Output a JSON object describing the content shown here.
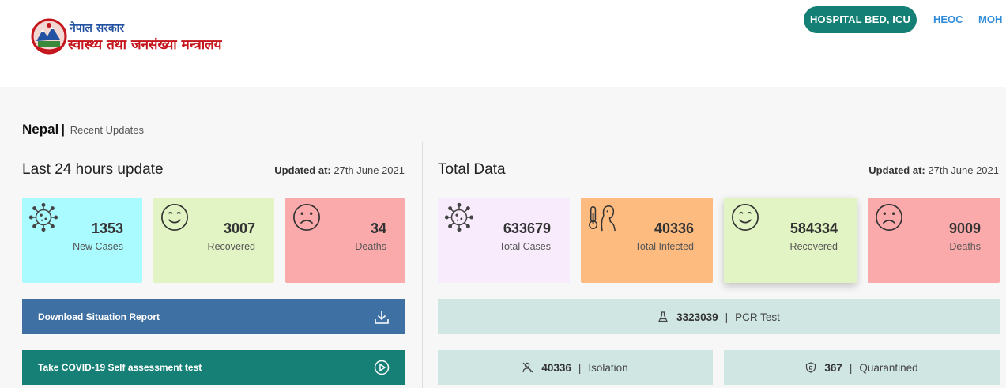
{
  "header": {
    "gov_name": "नेपाल सरकार",
    "ministry_name": "स्वास्थ्य तथा जनसंख्या मन्त्रालय",
    "nav": {
      "hospital_bed": "HOSPITAL BED, ICU",
      "heoc": "HEOC",
      "moh": "MOH"
    },
    "colors": {
      "pill": "#148075",
      "link": "#2f8ad8"
    }
  },
  "breadcrumb": {
    "country": "Nepal",
    "separator": "|",
    "section": "Recent Updates"
  },
  "last24": {
    "title": "Last 24 hours update",
    "updated_label": "Updated at:",
    "updated_date": "27th June 2021",
    "cards": [
      {
        "icon": "virus-icon",
        "value": "1353",
        "label": "New Cases",
        "color": "#aafbff"
      },
      {
        "icon": "smile-face-icon",
        "value": "3007",
        "label": "Recovered",
        "color": "#e3f4c4"
      },
      {
        "icon": "sad-face-icon",
        "value": "34",
        "label": "Deaths",
        "color": "#fbaaab"
      }
    ],
    "download_report": "Download Situation Report",
    "self_assessment": "Take COVID-19 Self assessment test"
  },
  "total": {
    "title": "Total Data",
    "updated_label": "Updated at:",
    "updated_date": "27th June 2021",
    "cards": [
      {
        "icon": "virus-icon",
        "value": "633679",
        "label": "Total Cases",
        "color": "#f8ebfc"
      },
      {
        "icon": "fever-thermometer-icon",
        "value": "40336",
        "label": "Total Infected",
        "color": "#fdbb80"
      },
      {
        "icon": "smile-face-icon",
        "value": "584334",
        "label": "Recovered",
        "color": "#e3f4c4"
      },
      {
        "icon": "sad-face-icon",
        "value": "9009",
        "label": "Deaths",
        "color": "#fbaaab"
      }
    ],
    "pcr": {
      "value": "3323039",
      "label": "PCR Test"
    },
    "isolation": {
      "value": "40336",
      "label": "Isolation"
    },
    "quarantined": {
      "value": "367",
      "label": "Quarantined"
    },
    "pipe": "|"
  }
}
